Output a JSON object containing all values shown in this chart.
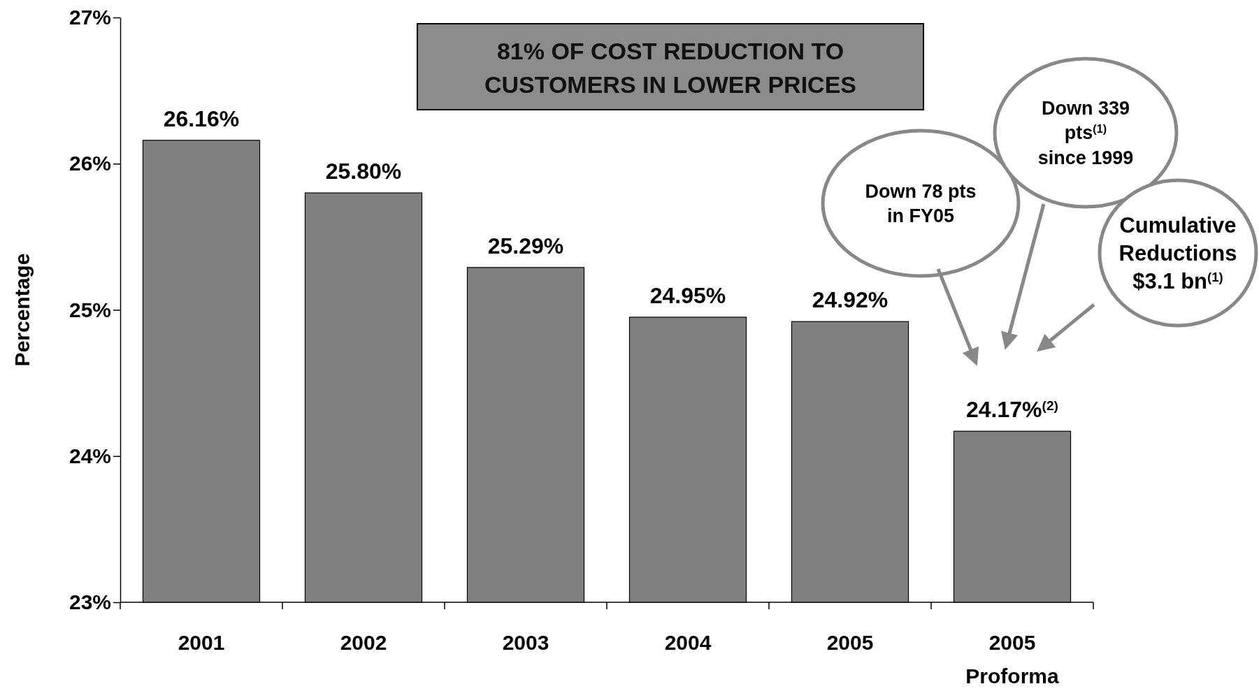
{
  "chart_data": {
    "type": "bar",
    "title": "81% OF COST REDUCTION TO CUSTOMERS IN LOWER PRICES",
    "ylabel": "Percentage",
    "categories": [
      "2001",
      "2002",
      "2003",
      "2004",
      "2005",
      "2005 Proforma"
    ],
    "values": [
      26.16,
      25.8,
      25.29,
      24.95,
      24.92,
      24.17
    ],
    "value_labels": [
      "26.16%",
      "25.80%",
      "25.29%",
      "24.95%",
      "24.92%",
      "24.17%$^{(2)}$"
    ],
    "color": "#808080",
    "ylim": [
      23,
      27
    ],
    "yticks": [
      {
        "value": 23,
        "label": "23%"
      },
      {
        "value": 24,
        "label": "24%"
      },
      {
        "value": 25,
        "label": "25%"
      },
      {
        "value": 26,
        "label": "26%"
      },
      {
        "value": 27,
        "label": "27%"
      }
    ],
    "annotations": [
      "Down 78 pts in FY05",
      "Down 339 pts$^{(1)}$ since 1999",
      "Cumulative Reductions $3.1 bn$^{(1)}$"
    ],
    "grid": false
  }
}
